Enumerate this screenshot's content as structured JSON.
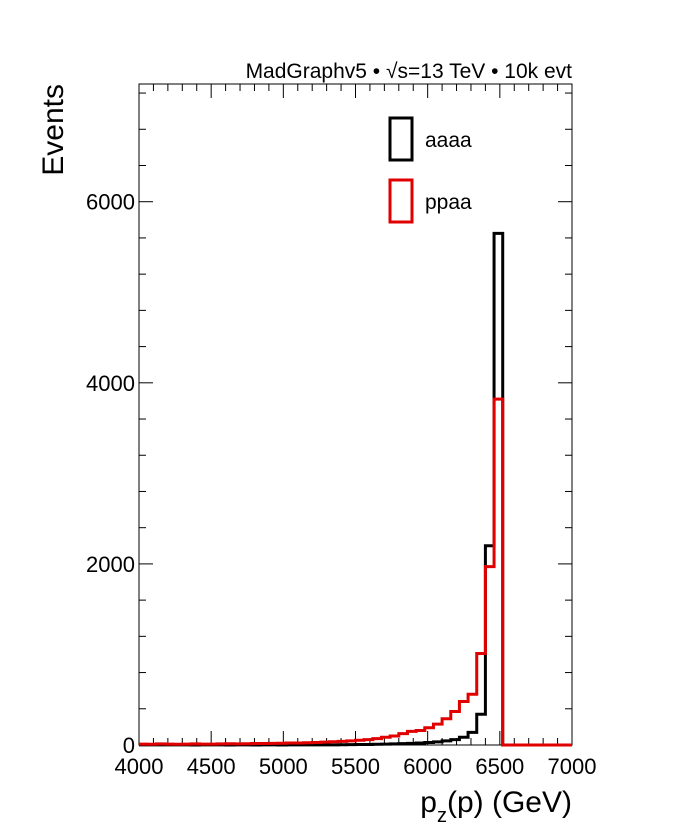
{
  "chart_data": {
    "type": "histogram",
    "header": "MadGraphv5 • √s=13 TeV • 10k evt",
    "xlabel": "p_z(p) (GeV)",
    "ylabel": "Events",
    "xlim": [
      4000,
      7000
    ],
    "ylim": [
      0,
      7300
    ],
    "xticks": [
      4000,
      4500,
      5000,
      5500,
      6000,
      6500,
      7000
    ],
    "yticks": [
      0,
      2000,
      4000,
      6000
    ],
    "bin_width": 60,
    "legend_position": "top-center",
    "series": [
      {
        "name": "aaaa",
        "color": "#000000",
        "bins": [
          [
            4000,
            4060,
            2
          ],
          [
            4060,
            4120,
            2
          ],
          [
            4120,
            4180,
            1
          ],
          [
            4180,
            4240,
            1
          ],
          [
            4240,
            4300,
            1
          ],
          [
            4300,
            4360,
            1
          ],
          [
            4360,
            4420,
            0
          ],
          [
            4420,
            4480,
            1
          ],
          [
            4480,
            4540,
            1
          ],
          [
            4540,
            4600,
            1
          ],
          [
            4600,
            4660,
            0
          ],
          [
            4660,
            4720,
            1
          ],
          [
            4720,
            4780,
            1
          ],
          [
            4780,
            4840,
            0
          ],
          [
            4840,
            4900,
            1
          ],
          [
            4900,
            4960,
            1
          ],
          [
            4960,
            5020,
            0
          ],
          [
            5020,
            5080,
            1
          ],
          [
            5080,
            5140,
            1
          ],
          [
            5140,
            5200,
            1
          ],
          [
            5200,
            5260,
            2
          ],
          [
            5260,
            5320,
            2
          ],
          [
            5320,
            5380,
            2
          ],
          [
            5380,
            5440,
            3
          ],
          [
            5440,
            5500,
            4
          ],
          [
            5500,
            5560,
            5
          ],
          [
            5560,
            5620,
            6
          ],
          [
            5620,
            5680,
            8
          ],
          [
            5680,
            5740,
            10
          ],
          [
            5740,
            5800,
            12
          ],
          [
            5800,
            5860,
            15
          ],
          [
            5860,
            5920,
            18
          ],
          [
            5920,
            5980,
            22
          ],
          [
            5980,
            6040,
            28
          ],
          [
            6040,
            6100,
            35
          ],
          [
            6100,
            6160,
            45
          ],
          [
            6160,
            6220,
            60
          ],
          [
            6220,
            6280,
            85
          ],
          [
            6280,
            6340,
            140
          ],
          [
            6340,
            6400,
            340
          ],
          [
            6400,
            6460,
            2200
          ],
          [
            6460,
            6520,
            5650
          ],
          [
            6520,
            6580,
            0
          ],
          [
            6580,
            6640,
            0
          ],
          [
            6640,
            6700,
            0
          ],
          [
            6700,
            6760,
            0
          ],
          [
            6760,
            6820,
            0
          ],
          [
            6820,
            6880,
            0
          ],
          [
            6880,
            6940,
            0
          ],
          [
            6940,
            7000,
            0
          ]
        ]
      },
      {
        "name": "ppaa",
        "color": "#e00000",
        "bins": [
          [
            4000,
            4060,
            10
          ],
          [
            4060,
            4120,
            8
          ],
          [
            4120,
            4180,
            12
          ],
          [
            4180,
            4240,
            10
          ],
          [
            4240,
            4300,
            8
          ],
          [
            4300,
            4360,
            10
          ],
          [
            4360,
            4420,
            12
          ],
          [
            4420,
            4480,
            10
          ],
          [
            4480,
            4540,
            10
          ],
          [
            4540,
            4600,
            12
          ],
          [
            4600,
            4660,
            14
          ],
          [
            4660,
            4720,
            12
          ],
          [
            4720,
            4780,
            14
          ],
          [
            4780,
            4840,
            16
          ],
          [
            4840,
            4900,
            16
          ],
          [
            4900,
            4960,
            18
          ],
          [
            4960,
            5020,
            20
          ],
          [
            5020,
            5080,
            22
          ],
          [
            5080,
            5140,
            22
          ],
          [
            5140,
            5200,
            25
          ],
          [
            5200,
            5260,
            28
          ],
          [
            5260,
            5320,
            32
          ],
          [
            5320,
            5380,
            36
          ],
          [
            5380,
            5440,
            40
          ],
          [
            5440,
            5500,
            46
          ],
          [
            5500,
            5560,
            52
          ],
          [
            5560,
            5620,
            60
          ],
          [
            5620,
            5680,
            70
          ],
          [
            5680,
            5740,
            85
          ],
          [
            5740,
            5800,
            100
          ],
          [
            5800,
            5860,
            125
          ],
          [
            5860,
            5920,
            150
          ],
          [
            5920,
            5980,
            160
          ],
          [
            5980,
            6040,
            190
          ],
          [
            6040,
            6100,
            230
          ],
          [
            6100,
            6160,
            290
          ],
          [
            6160,
            6220,
            370
          ],
          [
            6220,
            6280,
            480
          ],
          [
            6280,
            6340,
            560
          ],
          [
            6340,
            6400,
            1010
          ],
          [
            6400,
            6460,
            1970
          ],
          [
            6460,
            6520,
            3820
          ],
          [
            6520,
            6580,
            0
          ],
          [
            6580,
            6640,
            0
          ],
          [
            6640,
            6700,
            0
          ],
          [
            6700,
            6760,
            0
          ],
          [
            6760,
            6820,
            0
          ],
          [
            6820,
            6880,
            0
          ],
          [
            6880,
            6940,
            0
          ],
          [
            6940,
            7000,
            0
          ]
        ]
      }
    ]
  }
}
